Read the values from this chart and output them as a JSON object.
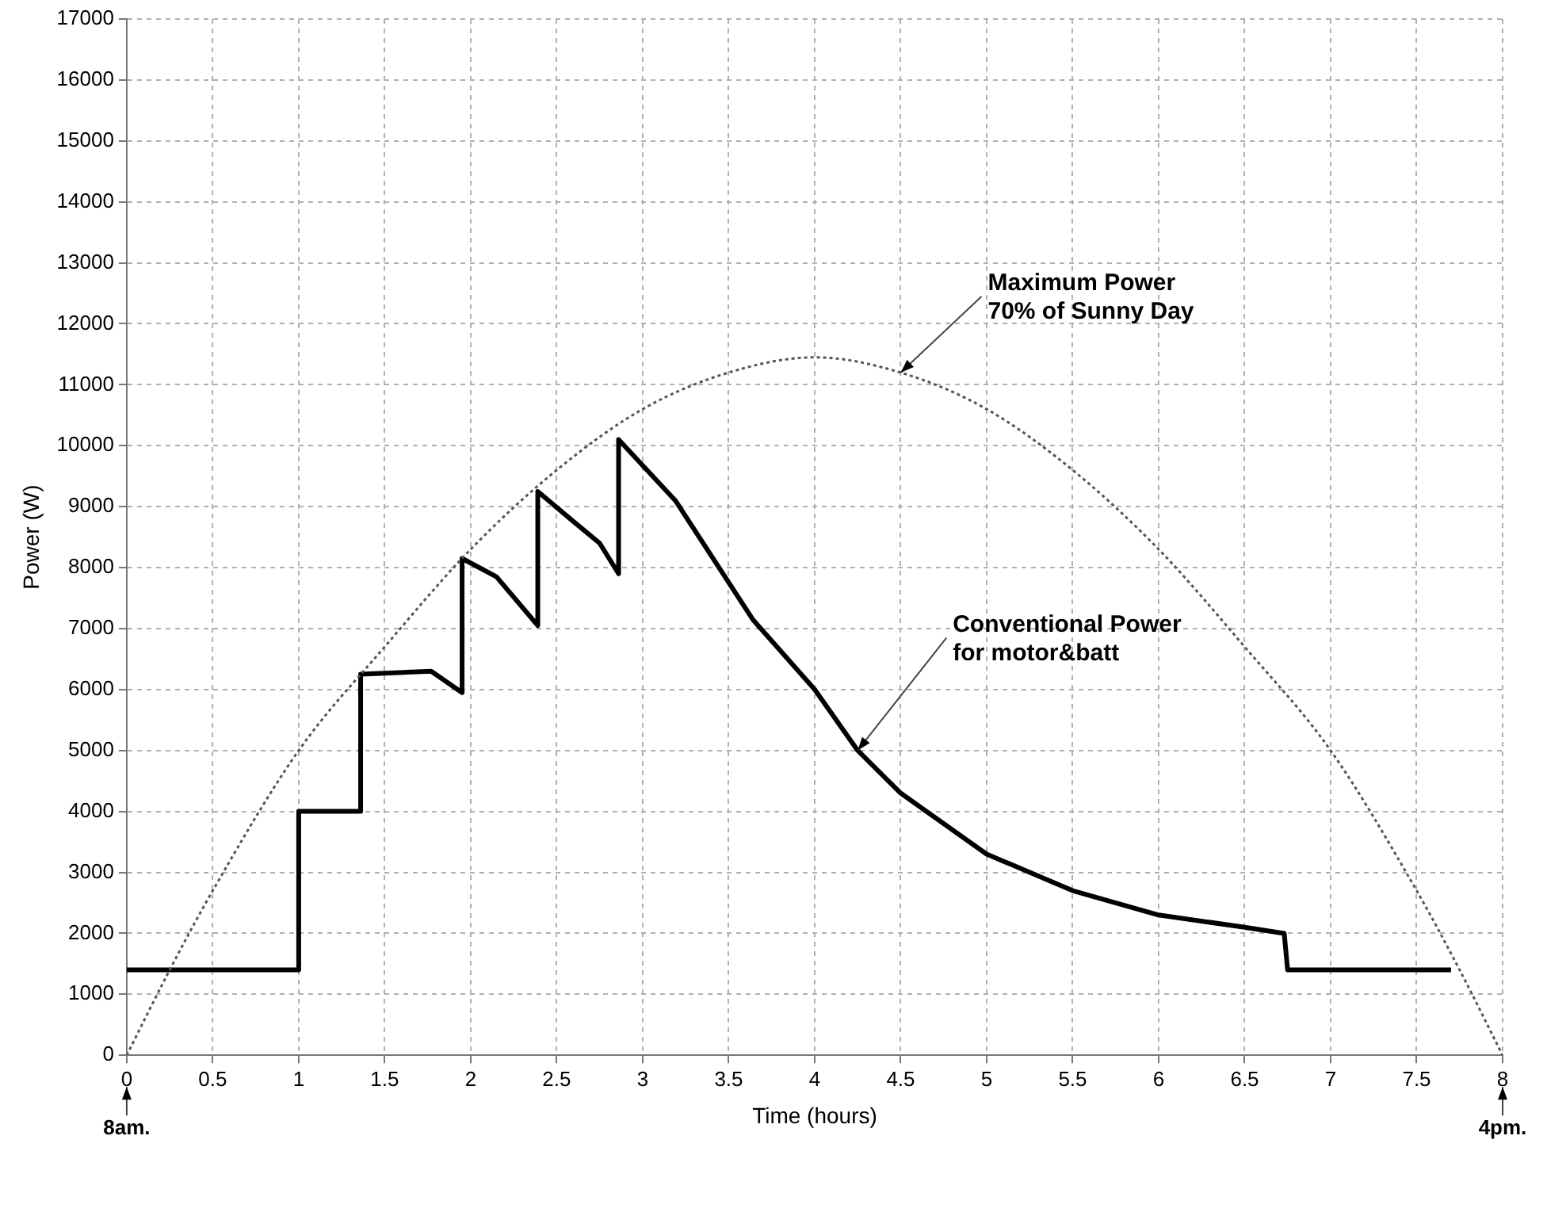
{
  "chart_data": {
    "type": "line",
    "xlabel": "Time (hours)",
    "ylabel": "Power (W)",
    "xlim": [
      0,
      8
    ],
    "xticks": [
      0,
      0.5,
      1,
      1.5,
      2,
      2.5,
      3,
      3.5,
      4,
      4.5,
      5,
      5.5,
      6,
      6.5,
      7,
      7.5,
      8
    ],
    "ylim": [
      0,
      17000
    ],
    "yticks": [
      0,
      1000,
      2000,
      3000,
      4000,
      5000,
      6000,
      7000,
      8000,
      9000,
      10000,
      11000,
      12000,
      13000,
      14000,
      15000,
      16000,
      17000
    ],
    "grid": true,
    "legend": false,
    "marker": "none",
    "series": [
      {
        "color": "#555555",
        "line_style": "dotted",
        "x": [
          0,
          0.25,
          0.5,
          1,
          1.5,
          2,
          2.5,
          3,
          3.5,
          4,
          4.5,
          5,
          5.5,
          6,
          6.5,
          7,
          7.5,
          7.75,
          8
        ],
        "values": [
          0,
          1400,
          2700,
          5000,
          6700,
          8300,
          9600,
          10600,
          11200,
          11450,
          11200,
          10600,
          9600,
          8300,
          6700,
          5000,
          2700,
          1400,
          0
        ]
      },
      {
        "color": "#000000",
        "line_style": "solid",
        "x": [
          0,
          1,
          1,
          1.36,
          1.36,
          1.77,
          1.95,
          1.95,
          2.15,
          2.39,
          2.39,
          2.6,
          2.75,
          2.86,
          2.86,
          3.19,
          3.64,
          4,
          4.25,
          4.5,
          5,
          5.5,
          6,
          6.5,
          6.73,
          6.75,
          7.7
        ],
        "values": [
          1400,
          1400,
          4000,
          4000,
          6250,
          6300,
          5950,
          8150,
          7850,
          7050,
          9250,
          8750,
          8400,
          7900,
          10100,
          9100,
          7150,
          6000,
          5000,
          4300,
          3300,
          2700,
          2300,
          2100,
          2000,
          1400,
          1400
        ]
      }
    ],
    "annotations": [
      {
        "text": "Maximum Power\n70% of Sunny Day",
        "x": 4.5,
        "y": 11200
      },
      {
        "text": "Conventional Power\nfor motor&batt",
        "x": 4.25,
        "y": 5000
      },
      {
        "text": "8am.",
        "x": 0,
        "y": 0
      },
      {
        "text": "4pm.",
        "x": 8,
        "y": 0
      }
    ]
  }
}
